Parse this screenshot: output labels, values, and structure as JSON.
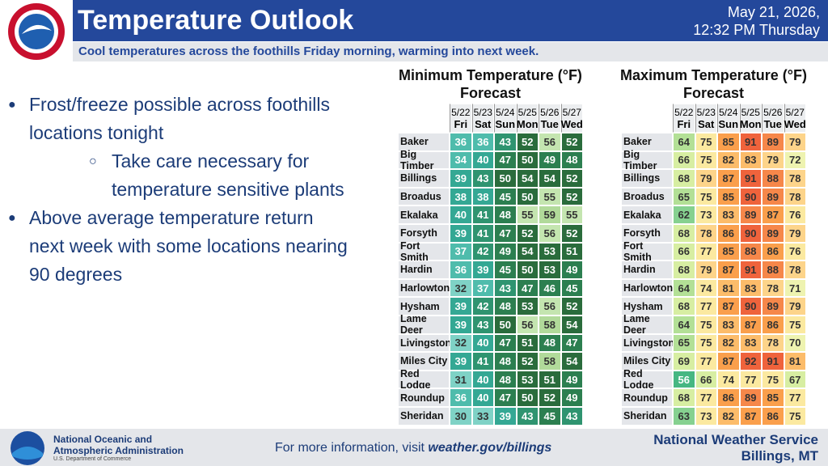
{
  "header": {
    "title": "Temperature Outlook",
    "date": "May 21, 2026,",
    "time": "12:32 PM Thursday",
    "subtitle": "Cool temperatures across the foothills Friday morning, warming into next week."
  },
  "bullets": [
    {
      "level": 1,
      "text": "Frost/freeze possible across foothills locations tonight"
    },
    {
      "level": 2,
      "text": "Take care necessary for temperature sensitive plants"
    },
    {
      "level": 1,
      "text": "Above average temperature return next week with some locations nearing 90 degrees"
    }
  ],
  "tables": [
    {
      "title": [
        "Minimum Temperature (°F)",
        "Forecast"
      ],
      "columns": [
        {
          "date": "5/22",
          "day": "Fri"
        },
        {
          "date": "5/23",
          "day": "Sat"
        },
        {
          "date": "5/24",
          "day": "Sun"
        },
        {
          "date": "5/25",
          "day": "Mon"
        },
        {
          "date": "5/26",
          "day": "Tue"
        },
        {
          "date": "5/27",
          "day": "Wed"
        }
      ],
      "color_scale": [
        {
          "from": 30,
          "color": "#7fd2c6"
        },
        {
          "from": 34,
          "color": "#4fbcac"
        },
        {
          "from": 38,
          "color": "#34a894"
        },
        {
          "from": 41,
          "color": "#2f9470"
        },
        {
          "from": 45,
          "color": "#2c7f50"
        },
        {
          "from": 50,
          "color": "#2a6c3c"
        },
        {
          "from": 55,
          "color": "#c4e5b0"
        },
        {
          "from": 58,
          "color": "#b1da9a"
        }
      ],
      "rows": [
        {
          "name": "Baker",
          "values": [
            36,
            36,
            43,
            52,
            56,
            52
          ]
        },
        {
          "name": "Big Timber",
          "values": [
            34,
            40,
            47,
            50,
            49,
            48
          ]
        },
        {
          "name": "Billings",
          "values": [
            39,
            43,
            50,
            54,
            54,
            52
          ]
        },
        {
          "name": "Broadus",
          "values": [
            38,
            38,
            45,
            50,
            55,
            52
          ]
        },
        {
          "name": "Ekalaka",
          "values": [
            40,
            41,
            48,
            55,
            59,
            55
          ]
        },
        {
          "name": "Forsyth",
          "values": [
            39,
            41,
            47,
            52,
            56,
            52
          ]
        },
        {
          "name": "Fort Smith",
          "values": [
            37,
            42,
            49,
            54,
            53,
            51
          ]
        },
        {
          "name": "Hardin",
          "values": [
            36,
            39,
            45,
            50,
            53,
            49
          ]
        },
        {
          "name": "Harlowton",
          "values": [
            32,
            37,
            43,
            47,
            46,
            45
          ]
        },
        {
          "name": "Hysham",
          "values": [
            39,
            42,
            48,
            53,
            56,
            52
          ]
        },
        {
          "name": "Lame Deer",
          "values": [
            39,
            43,
            50,
            56,
            58,
            54
          ]
        },
        {
          "name": "Livingston",
          "values": [
            32,
            40,
            47,
            51,
            48,
            47
          ]
        },
        {
          "name": "Miles City",
          "values": [
            39,
            41,
            48,
            52,
            58,
            54
          ]
        },
        {
          "name": "Red Lodge",
          "values": [
            31,
            40,
            48,
            53,
            51,
            49
          ]
        },
        {
          "name": "Roundup",
          "values": [
            36,
            40,
            47,
            50,
            52,
            49
          ]
        },
        {
          "name": "Sheridan",
          "values": [
            30,
            33,
            39,
            43,
            45,
            43
          ]
        }
      ]
    },
    {
      "title": [
        "Maximum Temperature (°F)",
        "Forecast"
      ],
      "columns": [
        {
          "date": "5/22",
          "day": "Fri"
        },
        {
          "date": "5/23",
          "day": "Sat"
        },
        {
          "date": "5/24",
          "day": "Sun"
        },
        {
          "date": "5/25",
          "day": "Mon"
        },
        {
          "date": "5/26",
          "day": "Tue"
        },
        {
          "date": "5/27",
          "day": "Wed"
        }
      ],
      "color_scale": [
        {
          "from": 56,
          "color": "#46b782"
        },
        {
          "from": 62,
          "color": "#86d190"
        },
        {
          "from": 64,
          "color": "#b3e096"
        },
        {
          "from": 66,
          "color": "#d7eea2"
        },
        {
          "from": 70,
          "color": "#eef3b0"
        },
        {
          "from": 73,
          "color": "#fbe9a0"
        },
        {
          "from": 78,
          "color": "#fdd48a"
        },
        {
          "from": 81,
          "color": "#fcbc6a"
        },
        {
          "from": 85,
          "color": "#fa9f4c"
        },
        {
          "from": 88,
          "color": "#f6874a"
        },
        {
          "from": 90,
          "color": "#ef633c"
        }
      ],
      "rows": [
        {
          "name": "Baker",
          "values": [
            64,
            75,
            85,
            91,
            89,
            79
          ]
        },
        {
          "name": "Big Timber",
          "values": [
            66,
            75,
            82,
            83,
            79,
            72
          ]
        },
        {
          "name": "Billings",
          "values": [
            68,
            79,
            87,
            91,
            88,
            78
          ]
        },
        {
          "name": "Broadus",
          "values": [
            65,
            75,
            85,
            90,
            89,
            78
          ]
        },
        {
          "name": "Ekalaka",
          "values": [
            62,
            73,
            83,
            89,
            87,
            76
          ]
        },
        {
          "name": "Forsyth",
          "values": [
            68,
            78,
            86,
            90,
            89,
            79
          ]
        },
        {
          "name": "Fort Smith",
          "values": [
            66,
            77,
            85,
            88,
            86,
            76
          ]
        },
        {
          "name": "Hardin",
          "values": [
            68,
            79,
            87,
            91,
            88,
            78
          ]
        },
        {
          "name": "Harlowton",
          "values": [
            64,
            74,
            81,
            83,
            78,
            71
          ]
        },
        {
          "name": "Hysham",
          "values": [
            68,
            77,
            87,
            90,
            89,
            79
          ]
        },
        {
          "name": "Lame Deer",
          "values": [
            64,
            75,
            83,
            87,
            86,
            75
          ]
        },
        {
          "name": "Livingston",
          "values": [
            65,
            75,
            82,
            83,
            78,
            70
          ]
        },
        {
          "name": "Miles City",
          "values": [
            69,
            77,
            87,
            92,
            91,
            81
          ]
        },
        {
          "name": "Red Lodge",
          "values": [
            56,
            66,
            74,
            77,
            75,
            67
          ]
        },
        {
          "name": "Roundup",
          "values": [
            68,
            77,
            86,
            89,
            85,
            77
          ]
        },
        {
          "name": "Sheridan",
          "values": [
            63,
            73,
            82,
            87,
            86,
            75
          ]
        }
      ]
    }
  ],
  "footer": {
    "agency": [
      "National Oceanic and",
      "Atmospheric Administration"
    ],
    "dept": "U.S. Department of Commerce",
    "info": "For more information, visit",
    "link": "weather.gov/billings",
    "office": "National Weather Service",
    "location": "Billings, MT"
  }
}
